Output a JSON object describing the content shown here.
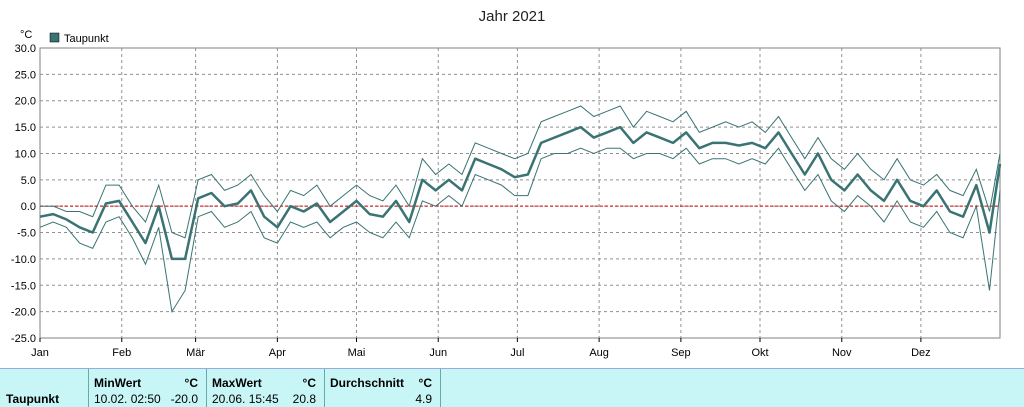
{
  "chart_data": {
    "type": "line",
    "title": "Jahr 2021",
    "ylabel": "°C",
    "ylim": [
      -25,
      30
    ],
    "yticks": [
      "30.0",
      "25.0",
      "20.0",
      "15.0",
      "10.0",
      "5.0",
      "0.0",
      "-5.0",
      "-10.0",
      "-15.0",
      "-20.0",
      "-25.0"
    ],
    "xticks": [
      "Jan",
      "Feb",
      "Mär",
      "Apr",
      "Mai",
      "Jun",
      "Jul",
      "Aug",
      "Sep",
      "Okt",
      "Nov",
      "Dez"
    ],
    "grid": true,
    "legend": "top-left",
    "series": [
      {
        "name": "Taupunkt",
        "x": [
          1,
          6,
          11,
          16,
          21,
          26,
          31,
          36,
          41,
          46,
          51,
          56,
          61,
          66,
          71,
          76,
          81,
          86,
          91,
          96,
          101,
          106,
          111,
          116,
          121,
          126,
          131,
          136,
          141,
          146,
          151,
          156,
          161,
          166,
          171,
          176,
          181,
          186,
          191,
          196,
          201,
          206,
          211,
          216,
          221,
          226,
          231,
          236,
          241,
          246,
          251,
          256,
          261,
          266,
          271,
          276,
          281,
          286,
          291,
          296,
          301,
          306,
          311,
          316,
          321,
          326,
          331,
          336,
          341,
          346,
          351,
          356,
          361,
          365
        ],
        "mean": [
          -2,
          -1.5,
          -2.5,
          -4,
          -5,
          0.5,
          1,
          -3,
          -7,
          0,
          -10,
          -10,
          1.5,
          2.5,
          0,
          0.5,
          3,
          -2,
          -4,
          0,
          -1,
          0.5,
          -3,
          -1,
          1,
          -1.5,
          -2,
          1,
          -3,
          5,
          3,
          5,
          3,
          9,
          8,
          7,
          5.5,
          6,
          12,
          13,
          14,
          15,
          13,
          14,
          15,
          12,
          14,
          13,
          12,
          14,
          11,
          12,
          12,
          11.5,
          12,
          11,
          14,
          10,
          6,
          10,
          5,
          3,
          6,
          3,
          1,
          5,
          1,
          0,
          3,
          -1,
          -2,
          4,
          -5,
          8
        ],
        "min": [
          -4,
          -3,
          -4,
          -7,
          -8,
          -3,
          -2,
          -6,
          -11,
          -4,
          -20,
          -16,
          -2,
          -1,
          -4,
          -3,
          -1,
          -6,
          -7,
          -3,
          -4,
          -3,
          -6,
          -4,
          -3,
          -5,
          -6,
          -3,
          -6,
          1,
          0,
          2,
          0,
          6,
          5,
          4,
          2,
          2,
          9,
          10,
          10,
          11,
          10,
          11,
          11,
          9,
          10,
          10,
          9,
          11,
          8,
          9,
          9,
          8,
          9,
          8,
          11,
          7,
          3,
          6,
          1,
          -1,
          2,
          0,
          -3,
          1,
          -3,
          -4,
          -1,
          -5,
          -6,
          0,
          -16,
          3
        ],
        "max": [
          0,
          0,
          -1,
          -1,
          -2,
          4,
          4,
          0,
          -3,
          4,
          -5,
          -6,
          5,
          6,
          3,
          4,
          6,
          2,
          -1,
          3,
          2,
          4,
          0,
          2,
          4,
          2,
          1,
          4,
          0,
          9,
          6,
          8,
          6,
          12,
          11,
          10,
          9,
          10,
          16,
          17,
          18,
          19,
          17,
          18,
          19,
          15,
          18,
          17,
          16,
          18,
          14,
          15,
          16,
          15,
          16,
          14,
          17,
          13,
          9,
          13,
          9,
          7,
          10,
          7,
          5,
          9,
          5,
          4,
          6,
          3,
          2,
          7,
          -1,
          10
        ],
        "color": "#3a7373"
      }
    ],
    "reference_line": {
      "y": 0,
      "color": "#dd0000"
    }
  },
  "stats": {
    "row_label": "Taupunkt",
    "min": {
      "header": "MinWert",
      "unit": "°C",
      "when": "10.02.  02:50",
      "value": "-20.0"
    },
    "max": {
      "header": "MaxWert",
      "unit": "°C",
      "when": "20.06.  15:45",
      "value": "20.8"
    },
    "avg": {
      "header": "Durchschnitt",
      "unit": "°C",
      "value": "4.9"
    }
  }
}
